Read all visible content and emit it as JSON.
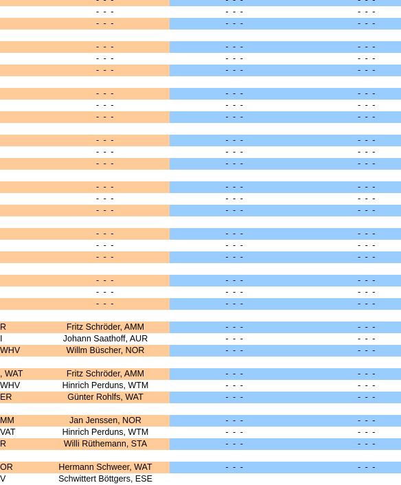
{
  "colors": {
    "orange": "#ffcc99",
    "blue": "#99ccff",
    "white": "#ffffff"
  },
  "rows": [
    {
      "c0": "",
      "c1": "- - -",
      "c2": "- - -",
      "c3": "- - -",
      "bg": "oB"
    },
    {
      "c0": "",
      "c1": "- - -",
      "c2": "- - -",
      "c3": "- - -",
      "bg": "ww"
    },
    {
      "c0": "",
      "c1": "- - -",
      "c2": "- - -",
      "c3": "- - -",
      "bg": "oB"
    },
    {
      "spacer": true
    },
    {
      "c0": "",
      "c1": "- - -",
      "c2": "- - -",
      "c3": "- - -",
      "bg": "oB"
    },
    {
      "c0": "",
      "c1": "- - -",
      "c2": "- - -",
      "c3": "- - -",
      "bg": "ww"
    },
    {
      "c0": "",
      "c1": "- - -",
      "c2": "- - -",
      "c3": "- - -",
      "bg": "oB"
    },
    {
      "spacer": true
    },
    {
      "c0": "",
      "c1": "- - -",
      "c2": "- - -",
      "c3": "- - -",
      "bg": "oB"
    },
    {
      "c0": "",
      "c1": "- - -",
      "c2": "- - -",
      "c3": "- - -",
      "bg": "ww"
    },
    {
      "c0": "",
      "c1": "- - -",
      "c2": "- - -",
      "c3": "- - -",
      "bg": "oB"
    },
    {
      "spacer": true
    },
    {
      "c0": "",
      "c1": "- - -",
      "c2": "- - -",
      "c3": "- - -",
      "bg": "oB"
    },
    {
      "c0": "",
      "c1": "- - -",
      "c2": "- - -",
      "c3": "- - -",
      "bg": "ww"
    },
    {
      "c0": "",
      "c1": "- - -",
      "c2": "- - -",
      "c3": "- - -",
      "bg": "oB"
    },
    {
      "spacer": true
    },
    {
      "c0": "",
      "c1": "- - -",
      "c2": "- - -",
      "c3": "- - -",
      "bg": "oB"
    },
    {
      "c0": "",
      "c1": "- - -",
      "c2": "- - -",
      "c3": "- - -",
      "bg": "ww"
    },
    {
      "c0": "",
      "c1": "- - -",
      "c2": "- - -",
      "c3": "- - -",
      "bg": "oB"
    },
    {
      "spacer": true
    },
    {
      "c0": "",
      "c1": "- - -",
      "c2": "- - -",
      "c3": "- - -",
      "bg": "oB"
    },
    {
      "c0": "",
      "c1": "- - -",
      "c2": "- - -",
      "c3": "- - -",
      "bg": "ww"
    },
    {
      "c0": "",
      "c1": "- - -",
      "c2": "- - -",
      "c3": "- - -",
      "bg": "oB"
    },
    {
      "spacer": true
    },
    {
      "c0": "",
      "c1": "- - -",
      "c2": "- - -",
      "c3": "- - -",
      "bg": "oB"
    },
    {
      "c0": "",
      "c1": "- - -",
      "c2": "- - -",
      "c3": "- - -",
      "bg": "ww"
    },
    {
      "c0": "",
      "c1": "- - -",
      "c2": "- - -",
      "c3": "- - -",
      "bg": "oB"
    },
    {
      "spacer": true
    },
    {
      "c0": "R",
      "c1": "Fritz Schröder, AMM",
      "c2": "- - -",
      "c3": "- - -",
      "bg": "oB"
    },
    {
      "c0": "I",
      "c1": "Johann Saathoff, AUR",
      "c2": "- - -",
      "c3": "- - -",
      "bg": "ww"
    },
    {
      "c0": "WHV",
      "c1": "Willm Büscher, NOR",
      "c2": "- - -",
      "c3": "- - -",
      "bg": "oB"
    },
    {
      "spacer": true
    },
    {
      "c0": ", WAT",
      "c1": "Fritz Schröder, AMM",
      "c2": "- - -",
      "c3": "- - -",
      "bg": "oB"
    },
    {
      "c0": "WHV",
      "c1": "Hinrich Perduns, WTM",
      "c2": "- - -",
      "c3": "- - -",
      "bg": "ww"
    },
    {
      "c0": "ER",
      "c1": "Günter Rohlfs, WAT",
      "c2": "- - -",
      "c3": "- - -",
      "bg": "oB"
    },
    {
      "spacer": true
    },
    {
      "c0": "MM",
      "c1": "Jan Jenssen, NOR",
      "c2": "- - -",
      "c3": "- - -",
      "bg": "oB"
    },
    {
      "c0": "VAT",
      "c1": "Hinrich Perduns, WTM",
      "c2": "- - -",
      "c3": "- - -",
      "bg": "ww"
    },
    {
      "c0": "R",
      "c1": "Willi Rüthemann, STA",
      "c2": "- - -",
      "c3": "- - -",
      "bg": "oB"
    },
    {
      "spacer": true
    },
    {
      "c0": "OR",
      "c1": "Hermann Schweer, WAT",
      "c2": "- - -",
      "c3": "- - -",
      "bg": "oB"
    },
    {
      "c0": "V",
      "c1": "Schwittert Böttgers, ESE",
      "c2": "",
      "c3": "",
      "bg": "ww"
    }
  ]
}
